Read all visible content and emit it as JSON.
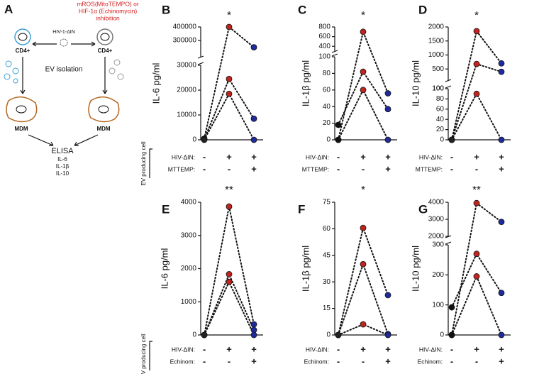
{
  "schematic": {
    "panel_label": "A",
    "inhibition_lines": [
      "mROS(MitoTEMPO) or",
      "HIF-1α (Echinomycin)",
      "inhibition"
    ],
    "virus": "HIV-1-ΔIN",
    "cell_left": "CD4+",
    "cell_right": "CD4+",
    "step": "EV isolation",
    "target_left": "MDM",
    "target_right": "MDM",
    "assay": "ELISA",
    "analytes": [
      "IL-6",
      "IL-1β",
      "IL-10"
    ]
  },
  "chart_data": [
    {
      "type": "line",
      "panel_label": "B",
      "ylabel": "IL-6 pg/ml",
      "annotation": "*",
      "row_group_label": "EV producing cell",
      "segments": [
        {
          "ylim": [
            0,
            30000
          ],
          "yticks": [
            0,
            10000,
            20000,
            30000
          ]
        },
        {
          "ylim": [
            180000,
            400000
          ],
          "yticks": [
            300000,
            400000
          ]
        }
      ],
      "point_colors": [
        "#222222",
        "#c0241f",
        "#1f2a9e"
      ],
      "series": [
        {
          "values": [
            500,
            400000,
            250000
          ]
        },
        {
          "values": [
            200,
            24500,
            8500
          ]
        },
        {
          "values": [
            0,
            18500,
            0
          ]
        }
      ],
      "conditions": [
        {
          "label": "HIV-ΔIN:",
          "marks": [
            "-",
            "+",
            "+"
          ]
        },
        {
          "label": "MTTEMP:",
          "marks": [
            "-",
            "-",
            "+"
          ]
        }
      ]
    },
    {
      "type": "line",
      "panel_label": "C",
      "ylabel": "IL-1β pg/ml",
      "annotation": "*",
      "segments": [
        {
          "ylim": [
            0,
            100
          ],
          "yticks": [
            0,
            20,
            40,
            60,
            80,
            100
          ]
        },
        {
          "ylim": [
            300,
            800
          ],
          "yticks": [
            400,
            600,
            800
          ]
        }
      ],
      "point_colors": [
        "#111111",
        "#c0241f",
        "#1f2a9e"
      ],
      "series": [
        {
          "values": [
            0,
            700,
            56
          ]
        },
        {
          "values": [
            18,
            82,
            37
          ]
        },
        {
          "values": [
            0,
            60,
            0
          ]
        }
      ],
      "conditions": [
        {
          "label": "HIV-ΔIN:",
          "marks": [
            "-",
            "+",
            "+"
          ]
        },
        {
          "label": "MTTEMP:",
          "marks": [
            "-",
            "-",
            "+"
          ]
        }
      ]
    },
    {
      "type": "line",
      "panel_label": "D",
      "ylabel": "IL-10 pg/ml",
      "annotation": "*",
      "segments": [
        {
          "ylim": [
            0,
            100
          ],
          "yticks": [
            0,
            20,
            40,
            60,
            80,
            100
          ]
        },
        {
          "ylim": [
            100,
            2000
          ],
          "yticks": [
            100,
            500,
            1000,
            1500,
            2000
          ]
        }
      ],
      "point_colors": [
        "#222222",
        "#c0241f",
        "#1f2a9e"
      ],
      "series": [
        {
          "values": [
            0,
            1850,
            700
          ]
        },
        {
          "values": [
            0,
            680,
            400
          ]
        },
        {
          "values": [
            0,
            90,
            0
          ]
        }
      ],
      "conditions": [
        {
          "label": "HIV-ΔIN:",
          "marks": [
            "-",
            "+",
            "+"
          ]
        },
        {
          "label": "MTTEMP:",
          "marks": [
            "-",
            "-",
            "+"
          ]
        }
      ]
    },
    {
      "type": "line",
      "panel_label": "E",
      "ylabel": "IL-6 pg/ml",
      "annotation": "**",
      "row_group_label": "EV producing cell",
      "segments": [
        {
          "ylim": [
            0,
            4000
          ],
          "yticks": [
            0,
            1000,
            2000,
            3000,
            4000
          ]
        }
      ],
      "point_colors": [
        "#222222",
        "#c0241f",
        "#1f2a9e"
      ],
      "series": [
        {
          "values": [
            0,
            3870,
            320
          ]
        },
        {
          "values": [
            0,
            1830,
            150
          ]
        },
        {
          "values": [
            0,
            1600,
            0
          ]
        }
      ],
      "conditions": [
        {
          "label": "HIV-ΔIN:",
          "marks": [
            "-",
            "+",
            "+"
          ]
        },
        {
          "label": "Echinom:",
          "marks": [
            "-",
            "-",
            "+"
          ]
        }
      ]
    },
    {
      "type": "line",
      "panel_label": "F",
      "ylabel": "IL-1β pg/ml",
      "annotation": "*",
      "segments": [
        {
          "ylim": [
            0,
            75
          ],
          "yticks": [
            0,
            15,
            30,
            45,
            60,
            75
          ]
        }
      ],
      "point_colors": [
        "#222222",
        "#c0241f",
        "#1f2a9e"
      ],
      "series": [
        {
          "values": [
            0,
            60.5,
            22.5
          ]
        },
        {
          "values": [
            0,
            40,
            0.5
          ]
        },
        {
          "values": [
            0,
            6,
            0
          ]
        }
      ],
      "conditions": [
        {
          "label": "HIV-ΔIN:",
          "marks": [
            "-",
            "+",
            "+"
          ]
        },
        {
          "label": "Echinom:",
          "marks": [
            "-",
            "-",
            "+"
          ]
        }
      ]
    },
    {
      "type": "line",
      "panel_label": "G",
      "ylabel": "IL-10 pg/ml",
      "annotation": "**",
      "segments": [
        {
          "ylim": [
            0,
            300
          ],
          "yticks": [
            0,
            100,
            200,
            300
          ]
        },
        {
          "ylim": [
            2000,
            4000
          ],
          "yticks": [
            2000,
            3000,
            4000
          ]
        }
      ],
      "point_colors": [
        "#111111",
        "#c0241f",
        "#1f2a9e"
      ],
      "series": [
        {
          "values": [
            0,
            3950,
            2850
          ]
        },
        {
          "values": [
            92,
            270,
            140
          ]
        },
        {
          "values": [
            0,
            195,
            0
          ]
        }
      ],
      "conditions": [
        {
          "label": "HIV-ΔIN:",
          "marks": [
            "-",
            "+",
            "+"
          ]
        },
        {
          "label": "Echinom:",
          "marks": [
            "-",
            "-",
            "+"
          ]
        }
      ]
    }
  ]
}
